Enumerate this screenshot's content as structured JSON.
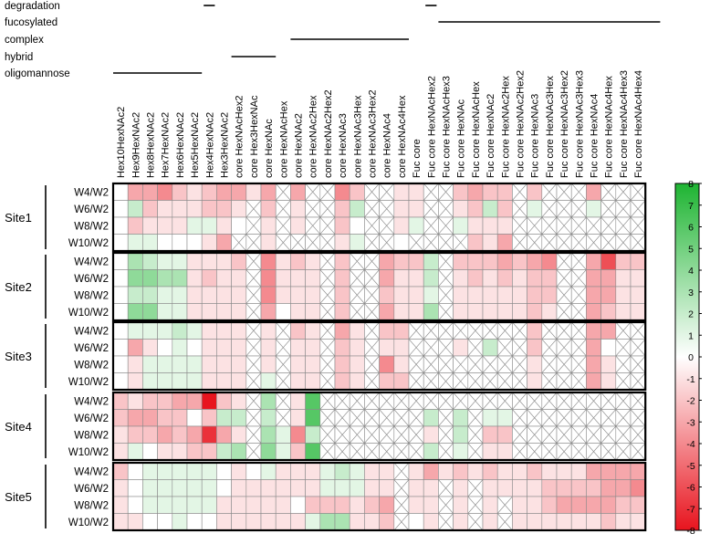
{
  "chart_data": {
    "type": "heatmap",
    "glycan_classes": [
      {
        "name": "degradation",
        "col_ranges": [
          [
            6,
            6
          ],
          [
            21,
            21
          ]
        ]
      },
      {
        "name": "fucosylated",
        "col_ranges": [
          [
            22,
            36
          ]
        ]
      },
      {
        "name": "complex",
        "col_ranges": [
          [
            12,
            19
          ]
        ]
      },
      {
        "name": "hybrid",
        "col_ranges": [
          [
            8,
            10
          ]
        ]
      },
      {
        "name": "oligomannose",
        "col_ranges": [
          [
            0,
            5
          ]
        ]
      }
    ],
    "columns": [
      "Hex10HexNAc2",
      "Hex9HexNAc2",
      "Hex8HexNAc2",
      "Hex7HexNAc2",
      "Hex6HexNAc2",
      "Hex5HexNAc2",
      "Hex4HexNAc2",
      "Hex3HexNAc2",
      "core HexNAcHex2",
      "core Hex3HexNAc",
      "core HexNAc",
      "core HexNAcHex",
      "core HexNAc2",
      "core HexNAc2Hex",
      "core HexNAc2Hex2",
      "core HexNAc3",
      "core HexNAc3Hex",
      "core HexNAc3Hex2",
      "core HexNAc4",
      "core HexNAc4Hex",
      "Fuc core",
      "Fuc core HexNAcHex2",
      "Fuc core HexNAcHex3",
      "Fuc core HexNAc",
      "Fuc core HexNAcHex",
      "Fuc core HexNAc2",
      "Fuc core HexNAc2Hex",
      "Fuc core HexNAc2Hex2",
      "Fuc core HexNAc3",
      "Fuc core HexNAc3Hex",
      "Fuc core HexNAc3Hex2",
      "Fuc core HexNAc3Hex3",
      "Fuc core HexNAc4",
      "Fuc core HexNAc4Hex",
      "Fuc core HexNAc4Hex3",
      "Fuc core HexNAc4Hex4"
    ],
    "row_labels": [
      "W4/W2",
      "W6/W2",
      "W8/W2",
      "W10/W2"
    ],
    "colorbar": {
      "min": -8,
      "max": 8,
      "ticks": [
        8,
        7,
        6,
        5,
        4,
        3,
        2,
        1,
        0,
        -1,
        -2,
        -3,
        -4,
        -5,
        -6,
        -7,
        -8
      ],
      "high_color": "#1eb432",
      "zero_color": "#ffffff",
      "low_color": "#e8141e"
    },
    "missing_symbol": "X",
    "sites": [
      {
        "name": "Site1",
        "rows": [
          [
            0,
            -3,
            -3,
            -4,
            -2,
            -1,
            -2,
            -3,
            -3,
            -1,
            -3,
            null,
            -3,
            null,
            null,
            -4,
            -2,
            null,
            null,
            -1,
            -1,
            null,
            null,
            -2,
            -3,
            -2,
            -2,
            null,
            -2,
            null,
            null,
            null,
            -3,
            null,
            null,
            null
          ],
          [
            0,
            2,
            -2,
            -1,
            -1,
            -1,
            -2,
            -2,
            -1,
            null,
            -2,
            null,
            -1,
            null,
            null,
            -2,
            2,
            null,
            null,
            -1,
            -1,
            null,
            null,
            -1,
            -2,
            2,
            -2,
            null,
            1,
            null,
            null,
            null,
            1,
            null,
            null,
            null
          ],
          [
            0,
            -2,
            -1,
            -1,
            -1,
            1,
            1,
            -1,
            0,
            null,
            -1,
            null,
            -1,
            null,
            null,
            -2,
            0,
            null,
            null,
            -1,
            1,
            null,
            null,
            1,
            -1,
            -1,
            -1,
            null,
            null,
            null,
            null,
            null,
            null,
            null,
            null,
            null
          ],
          [
            0,
            1,
            1,
            0,
            0,
            0,
            -1,
            -3,
            null,
            null,
            -1,
            null,
            null,
            null,
            null,
            -1,
            1,
            null,
            null,
            0,
            null,
            null,
            null,
            null,
            -2,
            -1,
            -3,
            null,
            null,
            null,
            null,
            null,
            null,
            null,
            null,
            null
          ]
        ]
      },
      {
        "name": "Site2",
        "rows": [
          [
            0,
            3,
            2,
            1,
            1,
            -1,
            -1,
            -1,
            -2,
            null,
            -4,
            -1,
            -2,
            -1,
            null,
            -2,
            null,
            null,
            -3,
            -2,
            -2,
            2,
            null,
            -2,
            -2,
            -2,
            -3,
            -2,
            -3,
            -4,
            null,
            null,
            -3,
            -6,
            -2,
            -2
          ],
          [
            0,
            4,
            4,
            3,
            3,
            -1,
            -2,
            -1,
            -1,
            null,
            -4,
            -1,
            -1,
            -1,
            null,
            -2,
            null,
            null,
            -3,
            -1,
            -1,
            2,
            null,
            -1,
            -2,
            -1,
            -2,
            -1,
            -2,
            -2,
            null,
            null,
            -3,
            -3,
            -1,
            -1
          ],
          [
            0,
            2,
            2,
            1,
            1,
            -1,
            -1,
            -1,
            -1,
            null,
            -4,
            -1,
            -1,
            -1,
            null,
            -2,
            null,
            null,
            -2,
            -1,
            -1,
            1,
            null,
            -1,
            -1,
            -1,
            -1,
            -1,
            -2,
            -2,
            null,
            null,
            -3,
            -3,
            -1,
            -1
          ],
          [
            0,
            4,
            4,
            1,
            1,
            -1,
            -1,
            -1,
            -1,
            null,
            -3,
            0,
            -1,
            -1,
            null,
            -2,
            null,
            null,
            -3,
            -1,
            -1,
            3,
            null,
            -1,
            -1,
            -1,
            -1,
            -1,
            -2,
            -1,
            null,
            null,
            -3,
            -2,
            -1,
            -1
          ]
        ]
      },
      {
        "name": "Site3",
        "rows": [
          [
            0,
            1,
            1,
            1,
            2,
            1,
            -1,
            -1,
            -1,
            null,
            -1,
            null,
            -2,
            -1,
            null,
            -3,
            -1,
            null,
            -2,
            -2,
            null,
            null,
            null,
            null,
            null,
            null,
            null,
            null,
            -2,
            null,
            null,
            null,
            -3,
            -3,
            null,
            null
          ],
          [
            0,
            -3,
            -1,
            0,
            1,
            0,
            -1,
            -1,
            -1,
            null,
            -1,
            null,
            -1,
            -1,
            null,
            -2,
            -1,
            null,
            -1,
            -1,
            null,
            null,
            null,
            -1,
            null,
            2,
            null,
            null,
            -2,
            null,
            null,
            null,
            -3,
            0,
            null,
            null
          ],
          [
            0,
            -1,
            1,
            1,
            1,
            1,
            -1,
            -1,
            -1,
            null,
            -1,
            null,
            -1,
            -1,
            null,
            -2,
            -1,
            null,
            -4,
            -1,
            null,
            null,
            null,
            null,
            null,
            null,
            null,
            null,
            -1,
            null,
            null,
            null,
            -3,
            -1,
            null,
            null
          ],
          [
            0,
            -1,
            1,
            1,
            1,
            1,
            -1,
            -1,
            -1,
            null,
            1,
            null,
            -1,
            -1,
            null,
            -2,
            -1,
            null,
            -2,
            -2,
            null,
            null,
            null,
            null,
            null,
            null,
            null,
            null,
            -1,
            null,
            null,
            null,
            -3,
            -1,
            null,
            null
          ]
        ]
      },
      {
        "name": "Site4",
        "rows": [
          [
            -2,
            -1,
            -2,
            -2,
            -3,
            -3,
            -8,
            -2,
            -1,
            null,
            3,
            null,
            -1,
            6,
            null,
            null,
            null,
            null,
            null,
            null,
            null,
            null,
            null,
            null,
            null,
            null,
            null,
            null,
            null,
            null,
            null,
            null,
            null,
            null,
            null,
            null
          ],
          [
            -2,
            -3,
            -3,
            -2,
            -2,
            0,
            -2,
            2,
            2,
            null,
            2,
            null,
            -1,
            6,
            null,
            null,
            null,
            null,
            null,
            null,
            null,
            2,
            null,
            2,
            null,
            1,
            1,
            null,
            null,
            null,
            null,
            null,
            null,
            null,
            null,
            null
          ],
          [
            -1,
            -2,
            -2,
            -3,
            -2,
            -3,
            -7,
            -3,
            -1,
            null,
            3,
            1,
            -4,
            2,
            null,
            null,
            null,
            null,
            null,
            null,
            null,
            -1,
            null,
            2,
            null,
            -2,
            -2,
            null,
            null,
            null,
            null,
            null,
            null,
            null,
            null,
            null
          ],
          [
            -1,
            1,
            0,
            -1,
            -1,
            -2,
            -2,
            2,
            3,
            null,
            4,
            1,
            -2,
            6,
            null,
            null,
            null,
            null,
            null,
            null,
            null,
            2,
            null,
            1,
            null,
            -1,
            -1,
            null,
            null,
            null,
            null,
            null,
            null,
            null,
            null,
            null
          ]
        ]
      },
      {
        "name": "Site5",
        "rows": [
          [
            -2,
            0,
            1,
            1,
            1,
            1,
            1,
            0,
            -1,
            0,
            1,
            -1,
            -1,
            -1,
            1,
            2,
            1,
            -1,
            -1,
            null,
            -1,
            -3,
            -1,
            -2,
            -1,
            -2,
            -1,
            -1,
            -2,
            -1,
            -1,
            -1,
            -3,
            -3,
            -3,
            -3
          ],
          [
            -1,
            0,
            1,
            1,
            1,
            1,
            1,
            0,
            -1,
            -1,
            -1,
            -1,
            -1,
            -1,
            1,
            1,
            1,
            -1,
            -1,
            null,
            -1,
            -1,
            null,
            -1,
            null,
            -1,
            -1,
            -1,
            -1,
            -2,
            -2,
            -2,
            -2,
            -3,
            -3,
            -4
          ],
          [
            -1,
            0,
            1,
            1,
            1,
            1,
            1,
            -1,
            -1,
            -1,
            -1,
            -1,
            0,
            -2,
            -2,
            -2,
            -1,
            -2,
            -3,
            null,
            -1,
            -1,
            null,
            -1,
            null,
            -1,
            null,
            -1,
            -1,
            -2,
            -3,
            -3,
            -3,
            -3,
            -2,
            -2
          ],
          [
            -1,
            -1,
            0,
            0,
            1,
            0,
            0,
            -1,
            -1,
            -1,
            -1,
            -1,
            -1,
            1,
            3,
            3,
            -1,
            -1,
            -2,
            null,
            0,
            -1,
            null,
            -1,
            null,
            -1,
            null,
            -1,
            -1,
            -1,
            -1,
            -1,
            -1,
            -2,
            -1,
            -1
          ]
        ]
      }
    ]
  }
}
